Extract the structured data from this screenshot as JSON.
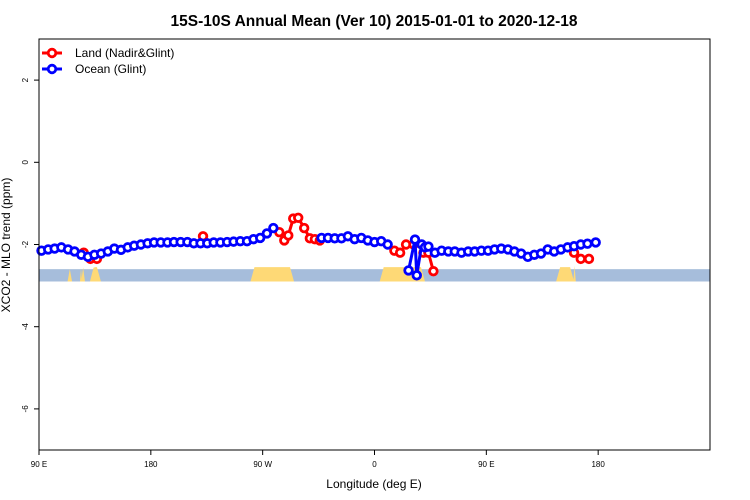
{
  "chart_data": {
    "type": "line",
    "title": "15S-10S Annual Mean (Ver 10)   2015-01-01 to 2020-12-18",
    "xlabel": "Longitude (deg E)",
    "ylabel": "XCO2 - MLO trend (ppm)",
    "xlim": [
      -90,
      180
    ],
    "ylim": [
      -7,
      3
    ],
    "x_ticks": [
      {
        "value": -90,
        "label": "90 E"
      },
      {
        "value": -45,
        "label": "180"
      },
      {
        "value": 0,
        "label": "90 W"
      },
      {
        "value": 45,
        "label": "0"
      },
      {
        "value": 90,
        "label": "90 E"
      },
      {
        "value": 135,
        "label": "180"
      }
    ],
    "y_ticks": [
      {
        "value": 2,
        "label": "2"
      },
      {
        "value": 0,
        "label": "0"
      },
      {
        "value": -2,
        "label": "-2"
      },
      {
        "value": -4,
        "label": "-4"
      },
      {
        "value": -6,
        "label": "-6"
      }
    ],
    "legend_position": "top-left",
    "grid": false,
    "series": [
      {
        "name": "Land (Nadir&Glint)",
        "color": "#ff0000",
        "points": [
          [
            -72.0,
            -2.2
          ],
          [
            -69.3,
            -2.35
          ],
          [
            -66.7,
            -2.35
          ],
          [
            -24.0,
            -1.8
          ],
          [
            6.7,
            -1.7
          ],
          [
            8.7,
            -1.9
          ],
          [
            10.3,
            -1.78
          ],
          [
            12.3,
            -1.37
          ],
          [
            14.3,
            -1.35
          ],
          [
            16.7,
            -1.6
          ],
          [
            19.0,
            -1.85
          ],
          [
            21.0,
            -1.87
          ],
          [
            23.0,
            -1.9
          ],
          [
            53.0,
            -2.15
          ],
          [
            55.3,
            -2.2
          ],
          [
            57.7,
            -2.0
          ],
          [
            60.7,
            -2.0
          ],
          [
            64.7,
            -2.2
          ],
          [
            66.7,
            -2.2
          ],
          [
            68.7,
            -2.65
          ],
          [
            125.3,
            -2.2
          ],
          [
            128.0,
            -2.35
          ],
          [
            131.3,
            -2.35
          ]
        ]
      },
      {
        "name": "Ocean (Glint)",
        "color": "#0000ff",
        "points": [
          [
            -89.0,
            -2.15
          ],
          [
            -86.3,
            -2.12
          ],
          [
            -83.7,
            -2.1
          ],
          [
            -81.0,
            -2.07
          ],
          [
            -78.3,
            -2.12
          ],
          [
            -75.7,
            -2.17
          ],
          [
            -73.0,
            -2.25
          ],
          [
            -70.3,
            -2.3
          ],
          [
            -67.7,
            -2.25
          ],
          [
            -65.0,
            -2.22
          ],
          [
            -62.3,
            -2.17
          ],
          [
            -59.7,
            -2.1
          ],
          [
            -57.0,
            -2.13
          ],
          [
            -54.3,
            -2.07
          ],
          [
            -51.7,
            -2.03
          ],
          [
            -49.0,
            -2.0
          ],
          [
            -46.3,
            -1.97
          ],
          [
            -43.7,
            -1.95
          ],
          [
            -41.0,
            -1.95
          ],
          [
            -38.3,
            -1.95
          ],
          [
            -35.7,
            -1.94
          ],
          [
            -33.0,
            -1.94
          ],
          [
            -30.3,
            -1.94
          ],
          [
            -27.7,
            -1.97
          ],
          [
            -25.0,
            -1.97
          ],
          [
            -22.3,
            -1.97
          ],
          [
            -19.7,
            -1.95
          ],
          [
            -17.0,
            -1.95
          ],
          [
            -14.3,
            -1.94
          ],
          [
            -11.7,
            -1.93
          ],
          [
            -9.0,
            -1.92
          ],
          [
            -6.3,
            -1.92
          ],
          [
            -3.7,
            -1.87
          ],
          [
            -1.0,
            -1.84
          ],
          [
            1.7,
            -1.73
          ],
          [
            4.3,
            -1.6
          ],
          [
            23.7,
            -1.84
          ],
          [
            26.3,
            -1.84
          ],
          [
            29.0,
            -1.85
          ],
          [
            31.7,
            -1.85
          ],
          [
            34.3,
            -1.8
          ],
          [
            37.0,
            -1.87
          ],
          [
            39.7,
            -1.84
          ],
          [
            42.3,
            -1.9
          ],
          [
            45.0,
            -1.94
          ],
          [
            47.7,
            -1.92
          ],
          [
            50.3,
            -2.0
          ],
          [
            58.7,
            -2.63
          ],
          [
            61.3,
            -1.88
          ],
          [
            62.0,
            -2.75
          ],
          [
            64.0,
            -2.0
          ],
          [
            65.3,
            -2.07
          ],
          [
            66.7,
            -2.05
          ],
          [
            69.3,
            -2.2
          ],
          [
            72.0,
            -2.15
          ],
          [
            74.7,
            -2.17
          ],
          [
            77.3,
            -2.17
          ],
          [
            80.0,
            -2.2
          ],
          [
            82.7,
            -2.17
          ],
          [
            85.3,
            -2.17
          ],
          [
            88.0,
            -2.15
          ],
          [
            90.7,
            -2.15
          ],
          [
            93.3,
            -2.12
          ],
          [
            96.0,
            -2.1
          ],
          [
            98.7,
            -2.12
          ],
          [
            101.3,
            -2.17
          ],
          [
            104.0,
            -2.22
          ],
          [
            106.7,
            -2.3
          ],
          [
            109.3,
            -2.25
          ],
          [
            112.0,
            -2.22
          ],
          [
            114.7,
            -2.12
          ],
          [
            117.3,
            -2.17
          ],
          [
            120.0,
            -2.12
          ],
          [
            122.7,
            -2.07
          ],
          [
            125.3,
            -2.04
          ],
          [
            128.0,
            -2.0
          ],
          [
            130.7,
            -1.98
          ],
          [
            134.0,
            -1.95
          ]
        ]
      }
    ],
    "land_mask": {
      "ocean_color": "#a6bddb",
      "land_color": "#fed976",
      "y_range": [
        -2.9,
        -2.6
      ],
      "land_segments": [
        [
          -67.7,
          -66.7
        ],
        [
          -3.3,
          11.0
        ],
        [
          48.7,
          63.7
        ],
        [
          119.7,
          123.7
        ]
      ],
      "land_spikes": [
        [
          -78.5,
          -2.6,
          -76.7
        ],
        [
          -73.5,
          -2.58,
          -72.7
        ],
        [
          -73.0,
          -2.56,
          -71.5
        ],
        [
          -69.5,
          -2.55,
          -66.5
        ],
        [
          119.0,
          -2.6,
          121.0
        ],
        [
          121.5,
          -2.55,
          123.0
        ],
        [
          125.0,
          -2.52,
          126.0
        ]
      ]
    }
  }
}
